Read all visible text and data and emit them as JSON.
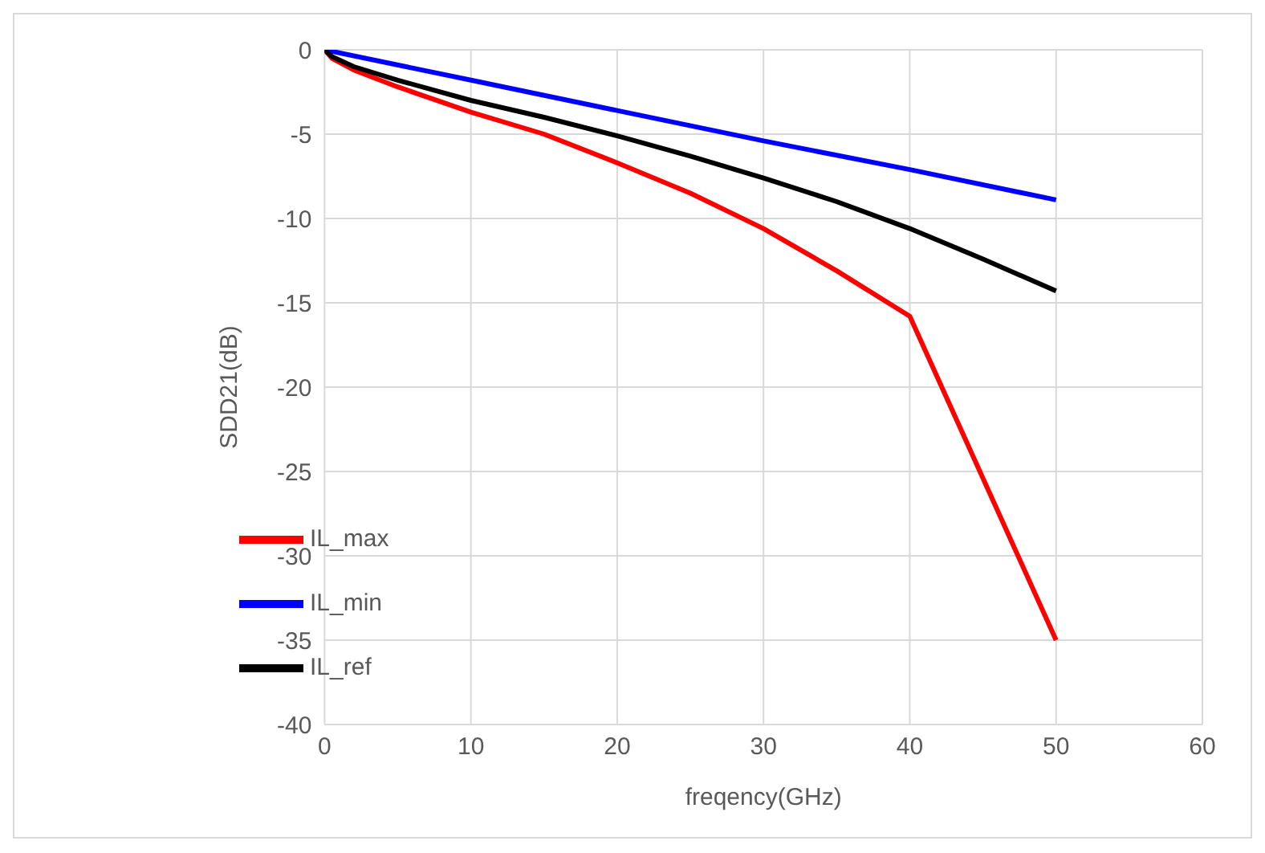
{
  "chart_data": {
    "type": "line",
    "xlabel": "freqency(GHz)",
    "ylabel": "SDD21(dB)",
    "xlim": [
      0,
      60
    ],
    "xticks": [
      0,
      10,
      20,
      30,
      40,
      50,
      60
    ],
    "ylim": [
      -40,
      0
    ],
    "yticks": [
      -40,
      -35,
      -30,
      -25,
      -20,
      -15,
      -10,
      -5,
      0
    ],
    "grid": true,
    "legend": "bottom left",
    "marker": "none",
    "line_style": "solid",
    "series": [
      {
        "name": "IL_min",
        "color": "#0000ff",
        "x": [
          0,
          10,
          20,
          30,
          40,
          50
        ],
        "values": [
          0,
          -1.8,
          -3.6,
          -5.4,
          -7.1,
          -8.9
        ]
      },
      {
        "name": "IL_max",
        "color": "#ff0000",
        "x": [
          0,
          0.5,
          2,
          5,
          10,
          15,
          20,
          25,
          30,
          35,
          40,
          50
        ],
        "values": [
          0,
          -0.5,
          -1.2,
          -2.2,
          -3.7,
          -5.0,
          -6.7,
          -8.5,
          -10.6,
          -13.1,
          -15.8,
          -35
        ]
      },
      {
        "name": "IL_ref",
        "color": "#000000",
        "x": [
          0,
          0.5,
          2,
          5,
          10,
          15,
          20,
          25,
          30,
          35,
          40,
          45,
          50
        ],
        "values": [
          0,
          -0.4,
          -1.0,
          -1.8,
          -3.0,
          -4.0,
          -5.1,
          -6.3,
          -7.6,
          -9.0,
          -10.6,
          -12.4,
          -14.3
        ]
      }
    ]
  }
}
